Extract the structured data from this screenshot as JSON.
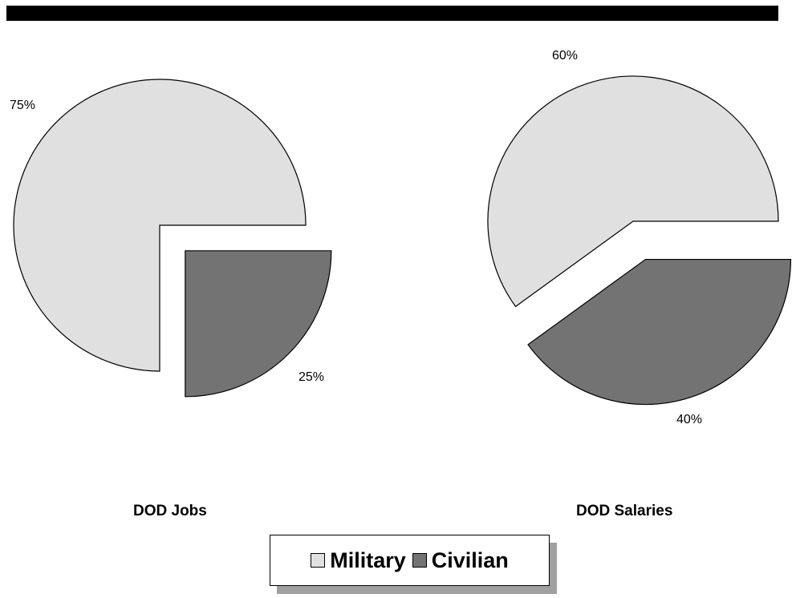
{
  "colors": {
    "military": "#e0e0e0",
    "civilian": "#737373",
    "outline": "#000000"
  },
  "legend": [
    {
      "label": "Military",
      "color": "#e0e0e0"
    },
    {
      "label": "Civilian",
      "color": "#737373"
    }
  ],
  "chart_data": [
    {
      "type": "pie",
      "title": "DOD Jobs",
      "labels": [
        "Military",
        "Civilian"
      ],
      "values": [
        75,
        25
      ],
      "value_labels": [
        "75%",
        "25%"
      ],
      "exploded": [
        "Civilian"
      ]
    },
    {
      "type": "pie",
      "title": "DOD Salaries",
      "labels": [
        "Military",
        "Civilian"
      ],
      "values": [
        60,
        40
      ],
      "value_labels": [
        "60%",
        "40%"
      ],
      "exploded": [
        "Civilian"
      ]
    }
  ]
}
